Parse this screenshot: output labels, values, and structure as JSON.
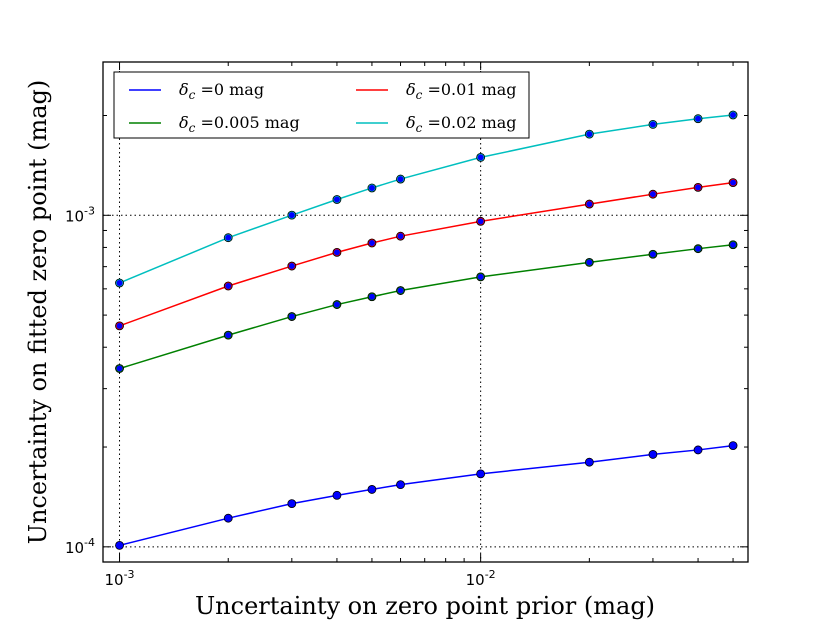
{
  "chart_data": {
    "type": "line",
    "x_scale": "log",
    "y_scale": "log",
    "xlabel": "Uncertainty on zero point prior (mag)",
    "ylabel": "Uncertainty on fitted zero point (mag)",
    "xlim": [
      0.0009,
      0.055
    ],
    "ylim": [
      9e-05,
      0.0029
    ],
    "grid": true,
    "legend_position": "top-left",
    "x_ticks": [
      {
        "value": 0.001,
        "base": "10",
        "exp": "-3"
      },
      {
        "value": 0.01,
        "base": "10",
        "exp": "-2"
      }
    ],
    "y_ticks": [
      {
        "value": 0.0001,
        "base": "10",
        "exp": "-4"
      },
      {
        "value": 0.001,
        "base": "10",
        "exp": "-3"
      }
    ],
    "x": [
      0.001,
      0.002,
      0.003,
      0.004,
      0.005,
      0.006,
      0.01,
      0.02,
      0.03,
      0.04,
      0.05
    ],
    "series": [
      {
        "name": "δ_c = 0 mag",
        "symbol": "δ",
        "sub": "c",
        "label_rest": " =0 mag",
        "color": "#0000ff",
        "values": [
          0.000101,
          0.000122,
          0.000135,
          0.000143,
          0.000149,
          0.000154,
          0.000166,
          0.00018,
          0.00019,
          0.000196,
          0.000202
        ]
      },
      {
        "name": "δ_c = 0.005 mag",
        "symbol": "δ",
        "sub": "c",
        "label_rest": " =0.005 mag",
        "color": "#008000",
        "values": [
          0.000345,
          0.000435,
          0.000495,
          0.000538,
          0.000568,
          0.000593,
          0.000652,
          0.000721,
          0.000763,
          0.000793,
          0.000815
        ]
      },
      {
        "name": "δ_c = 0.01 mag",
        "symbol": "δ",
        "sub": "c",
        "label_rest": " =0.01 mag",
        "color": "#ff0000",
        "values": [
          0.000464,
          0.000612,
          0.000703,
          0.000773,
          0.000825,
          0.000865,
          0.000959,
          0.001081,
          0.001158,
          0.001214,
          0.001255
        ]
      },
      {
        "name": "δ_c = 0.02 mag",
        "symbol": "δ",
        "sub": "c",
        "label_rest": " =0.02 mag",
        "color": "#00bfbf",
        "values": [
          0.000625,
          0.000856,
          0.001001,
          0.001116,
          0.001209,
          0.001286,
          0.001495,
          0.001757,
          0.00188,
          0.001956,
          0.002007
        ]
      }
    ]
  }
}
